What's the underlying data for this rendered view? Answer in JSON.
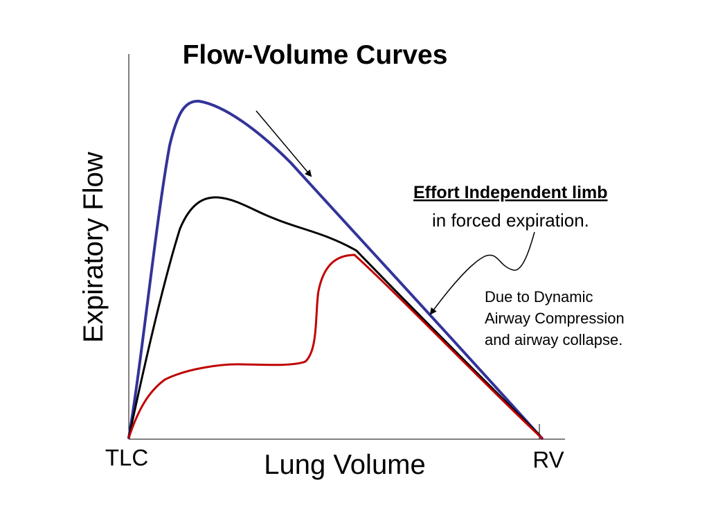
{
  "chart_data": {
    "type": "line",
    "title": "Flow-Volume Curves",
    "xlabel": "Lung Volume",
    "ylabel": "Expiratory Flow",
    "x_tick_labels": {
      "start": "TLC",
      "end": "RV"
    },
    "grid": false,
    "colors": {
      "maximal": "#33339a",
      "submaximal": "#000000",
      "collapse": "#c00000"
    },
    "annotations": {
      "effort_independent": {
        "heading": "Effort Independent limb",
        "text": "in forced expiration."
      },
      "dynamic_compression": {
        "lines": [
          "Due to Dynamic",
          "Airway Compression",
          "and airway collapse."
        ]
      }
    }
  }
}
